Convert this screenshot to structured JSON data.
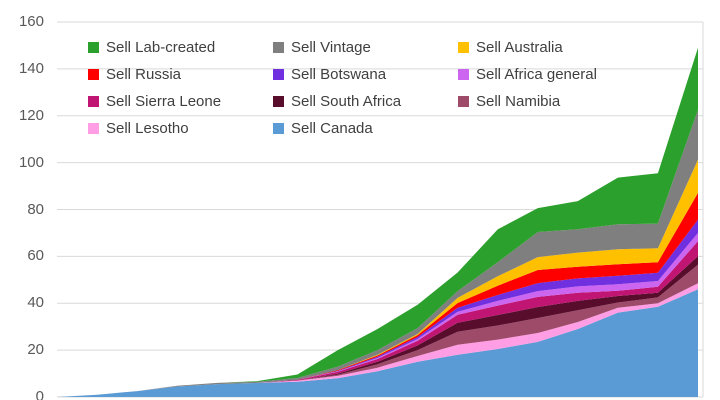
{
  "chart_data": {
    "type": "area",
    "stacked": true,
    "title": "",
    "xlabel": "",
    "ylabel": "",
    "x_labels_visible": false,
    "x": [
      1,
      2,
      3,
      4,
      5,
      6,
      7,
      8,
      9,
      10,
      11,
      12,
      13,
      14,
      15,
      16,
      17
    ],
    "y_ticks": [
      0,
      20,
      40,
      60,
      80,
      100,
      120,
      140,
      160
    ],
    "ylim": [
      0,
      160
    ],
    "grid": "horizontal",
    "gridline_color": "#d9d9d9",
    "tick_label_color": "#595959",
    "legend_position": "inside-top-left",
    "legend_columns": 3,
    "stacking_order_bottom_to_top": [
      "canada",
      "lesotho",
      "namibia",
      "south_africa",
      "sierra_leone",
      "africa_general",
      "botswana",
      "russia",
      "australia",
      "vintage",
      "lab_created"
    ],
    "series": [
      {
        "id": "lab_created",
        "label": "Sell Lab-created",
        "color": "#2ca02c",
        "values": [
          0,
          0,
          0,
          0,
          0,
          0.3,
          1.5,
          7,
          9,
          10,
          7.9,
          14,
          10.2,
          12,
          19.9,
          21.5,
          26.4
        ]
      },
      {
        "id": "vintage",
        "label": "Sell Vintage",
        "color": "#7f7f7f",
        "values": [
          0,
          0,
          0,
          0.3,
          0.5,
          0.5,
          0.8,
          1.5,
          2,
          2.5,
          2.9,
          6,
          10.7,
          10,
          10.7,
          10.5,
          21.3
        ]
      },
      {
        "id": "australia",
        "label": "Sell Australia",
        "color": "#ffc000",
        "values": [
          0,
          0,
          0,
          0,
          0,
          0,
          0,
          0,
          0.3,
          0.5,
          2.2,
          4,
          5.5,
          6,
          6.4,
          6,
          14.2
        ]
      },
      {
        "id": "russia",
        "label": "Sell Russia",
        "color": "#fe0000",
        "values": [
          0,
          0,
          0,
          0,
          0,
          0,
          0,
          0.3,
          0.5,
          0.8,
          2,
          4,
          5.6,
          5,
          4.9,
          4.5,
          11.4
        ]
      },
      {
        "id": "botswana",
        "label": "Sell Botswana",
        "color": "#7030e0",
        "values": [
          0,
          0,
          0,
          0,
          0,
          0,
          0,
          0.2,
          0.5,
          0.8,
          1.7,
          2.5,
          3.4,
          3.4,
          3.6,
          3.5,
          5.7
        ]
      },
      {
        "id": "africa_general",
        "label": "Sell Africa general",
        "color": "#cc66f0",
        "values": [
          0,
          0,
          0,
          0,
          0,
          0,
          0,
          0.2,
          0.5,
          0.8,
          1.3,
          2,
          2.5,
          2.7,
          2.8,
          2.5,
          3.5
        ]
      },
      {
        "id": "sierra_leone",
        "label": "Sell Sierra Leone",
        "color": "#c01572",
        "values": [
          0,
          0,
          0,
          0,
          0,
          0,
          0.3,
          0.8,
          1.2,
          2,
          3.4,
          4,
          4.3,
          3.5,
          2.2,
          2.5,
          6.4
        ]
      },
      {
        "id": "south_africa",
        "label": "Sell South Africa",
        "color": "#570d2b",
        "values": [
          0,
          0,
          0,
          0,
          0,
          0,
          0,
          0.4,
          1,
          2,
          3.9,
          4.5,
          4.7,
          4,
          2.8,
          2,
          3.6
        ]
      },
      {
        "id": "namibia",
        "label": "Sell Namibia",
        "color": "#9e4b69",
        "values": [
          0,
          0,
          0,
          0,
          0,
          0,
          0,
          0.5,
          1.5,
          2.5,
          5.5,
          6,
          6.4,
          5,
          2.2,
          2.5,
          8
        ]
      },
      {
        "id": "lesotho",
        "label": "Sell Lesotho",
        "color": "#ff9ee4",
        "values": [
          0,
          0,
          0,
          0,
          0,
          0,
          0.5,
          1,
          1.5,
          2.5,
          4.3,
          4,
          3.8,
          3,
          2.1,
          1.5,
          2.5
        ]
      },
      {
        "id": "canada",
        "label": "Sell Canada",
        "color": "#5b9bd5",
        "values": [
          0,
          1,
          2.5,
          4.5,
          5.5,
          6,
          6.5,
          8,
          11,
          15,
          18,
          20.5,
          23.5,
          29,
          36,
          38.5,
          46
        ]
      }
    ]
  }
}
